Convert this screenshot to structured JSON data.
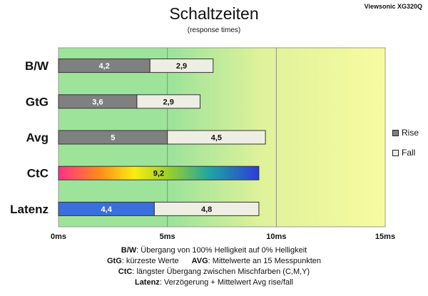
{
  "header": {
    "title": "Schaltzeiten",
    "subtitle": "(response times)",
    "model": "Viewsonic XG320Q"
  },
  "legend": {
    "rise_label": "Rise",
    "fall_label": "Fall"
  },
  "notes": {
    "bw_key": "B/W",
    "bw_text": ":  Übergang von 100% Helligkeit auf 0% Helligkeit",
    "gtg_key": "GtG",
    "gtg_text": ": kürzeste  Werte",
    "avg_key": "AVG",
    "avg_text": ": Mittelwerte  an 15 Messpunkten",
    "ctc_key": "CtC",
    "ctc_text": ": längster Übergang  zwischen Mischfarben (C,M,Y)",
    "lat_key": "Latenz",
    "lat_text": ": Verzögerung  + Mittelwert Avg rise/fall"
  },
  "colors": {
    "rise": "#808080",
    "fall": "#efeee4",
    "latenz_rise": "#3a6fe0",
    "bg_left": "#9ee39a",
    "bg_mid": "#dff29a",
    "bg_right": "#f8fba0"
  },
  "chart_data": {
    "type": "bar",
    "orientation": "horizontal",
    "stacked": true,
    "categories": [
      "B/W",
      "GtG",
      "Avg",
      "CtC",
      "Latenz"
    ],
    "series": [
      {
        "name": "Rise",
        "values": [
          4.2,
          3.6,
          5,
          null,
          4.4
        ]
      },
      {
        "name": "Fall",
        "values": [
          2.9,
          2.9,
          4.5,
          null,
          4.8
        ]
      },
      {
        "values": [
          null,
          null,
          null,
          9.2,
          null
        ]
      }
    ],
    "data_labels": [
      [
        "4,2",
        "2,9"
      ],
      [
        "3,6",
        "2,9"
      ],
      [
        "5",
        "4,5"
      ],
      [
        "9,2"
      ],
      [
        "4,4",
        "4,8"
      ]
    ],
    "xlim": [
      0,
      15
    ],
    "xticks": [
      0,
      5,
      10,
      15
    ],
    "xtick_labels": [
      "0ms",
      "5ms",
      "10ms",
      "15ms"
    ],
    "grid": true,
    "legend_position": "right"
  }
}
